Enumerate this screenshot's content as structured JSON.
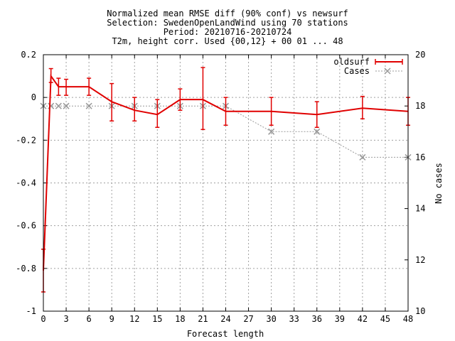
{
  "chart_data": {
    "type": "line",
    "title_lines": [
      "Normalized mean RMSE diff (90% conf) vs newsurf",
      "Selection: SwedenOpenLandWind using    70 stations",
      "Period: 20210716-20210724",
      "T2m, height corr.   Used {00,12} + 00 01 ... 48"
    ],
    "xlabel": "Forecast length",
    "ylabel": "",
    "y2label": "No cases",
    "xlim": [
      0,
      48
    ],
    "ylim": [
      -1,
      0.2
    ],
    "y2lim": [
      10,
      20
    ],
    "x_ticks": [
      "0",
      "3",
      "6",
      "9",
      "12",
      "15",
      "18",
      "21",
      "24",
      "27",
      "30",
      "33",
      "36",
      "39",
      "42",
      "45",
      "48"
    ],
    "y_ticks": [
      "0.2",
      "0",
      "-0.2",
      "-0.4",
      "-0.6",
      "-0.8",
      "-1"
    ],
    "y2_ticks": [
      "20",
      "18",
      "16",
      "14",
      "12",
      "10"
    ],
    "grid": true,
    "legend_position": "top-right",
    "series": [
      {
        "name": "oldsurf",
        "axis": "left",
        "color": "#e00000",
        "x": [
          0,
          1,
          2,
          3,
          6,
          9,
          12,
          15,
          18,
          21,
          24,
          30,
          36,
          42,
          48
        ],
        "y": [
          -0.81,
          0.1,
          0.05,
          0.05,
          0.05,
          -0.02,
          -0.06,
          -0.08,
          -0.01,
          -0.01,
          -0.065,
          -0.065,
          -0.08,
          -0.05,
          -0.065
        ],
        "err_low": [
          -0.91,
          0.07,
          0.01,
          0.01,
          0.01,
          -0.11,
          -0.11,
          -0.14,
          -0.06,
          -0.15,
          -0.13,
          -0.13,
          -0.14,
          -0.1,
          -0.13
        ],
        "err_high": [
          -0.71,
          0.135,
          0.09,
          0.085,
          0.09,
          0.065,
          0.0,
          -0.01,
          0.04,
          0.14,
          0.0,
          0.0,
          -0.02,
          0.005,
          0.0
        ]
      },
      {
        "name": "Cases",
        "axis": "right",
        "color": "#999999",
        "x": [
          0,
          1,
          2,
          3,
          6,
          9,
          12,
          15,
          18,
          21,
          24,
          30,
          36,
          42,
          48
        ],
        "y": [
          18,
          18,
          18,
          18,
          18,
          18,
          18,
          18,
          18,
          18,
          18,
          17,
          17,
          16,
          16
        ]
      }
    ]
  }
}
